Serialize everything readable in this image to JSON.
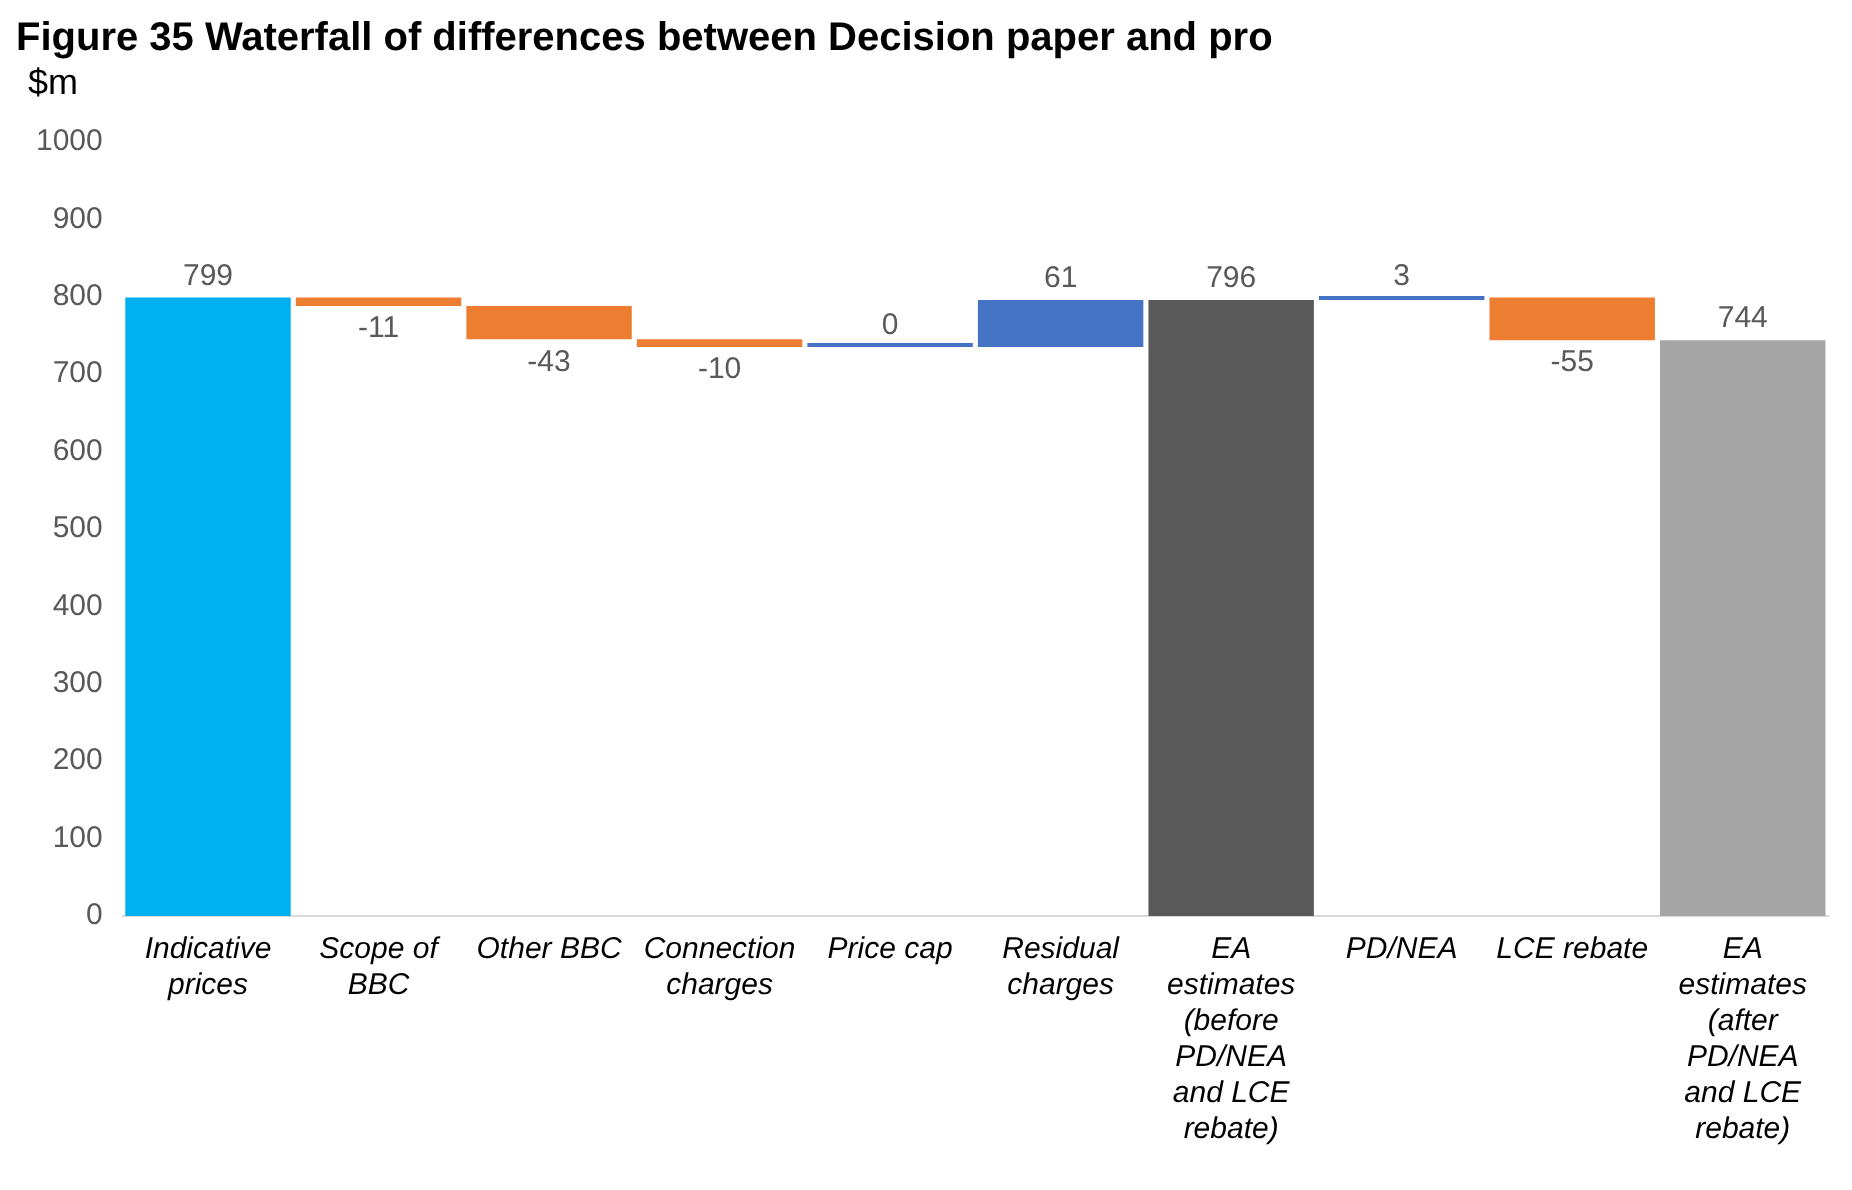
{
  "chart_data": {
    "type": "bar",
    "title": "Figure 35 Waterfall of differences between Decision paper and pro",
    "ylabel": "$m",
    "categories": [
      "Indicative prices",
      "Scope of BBC",
      "Other BBC",
      "Connection charges",
      "Price cap",
      "Residual charges",
      "EA estimates (before PD/NEA and LCE rebate)",
      "PD/NEA",
      "LCE rebate",
      "EA estimates (after PD/NEA and LCE rebate)"
    ],
    "values": [
      799,
      -11,
      -43,
      -10,
      0,
      61,
      796,
      3,
      -55,
      744
    ],
    "base": [
      0,
      799,
      788,
      745,
      735,
      735,
      0,
      796,
      799,
      0
    ],
    "colors": [
      "#00b0f0",
      "#ed7d31",
      "#ed7d31",
      "#ed7d31",
      "#4472c4",
      "#4472c4",
      "#595959",
      "#4472c4",
      "#ed7d31",
      "#a5a5a5"
    ],
    "ylim": [
      0,
      1000
    ],
    "yticks": [
      0,
      100,
      200,
      300,
      400,
      500,
      600,
      700,
      800,
      900,
      1000
    ],
    "data_labels": true,
    "grid": false,
    "legend": false
  }
}
